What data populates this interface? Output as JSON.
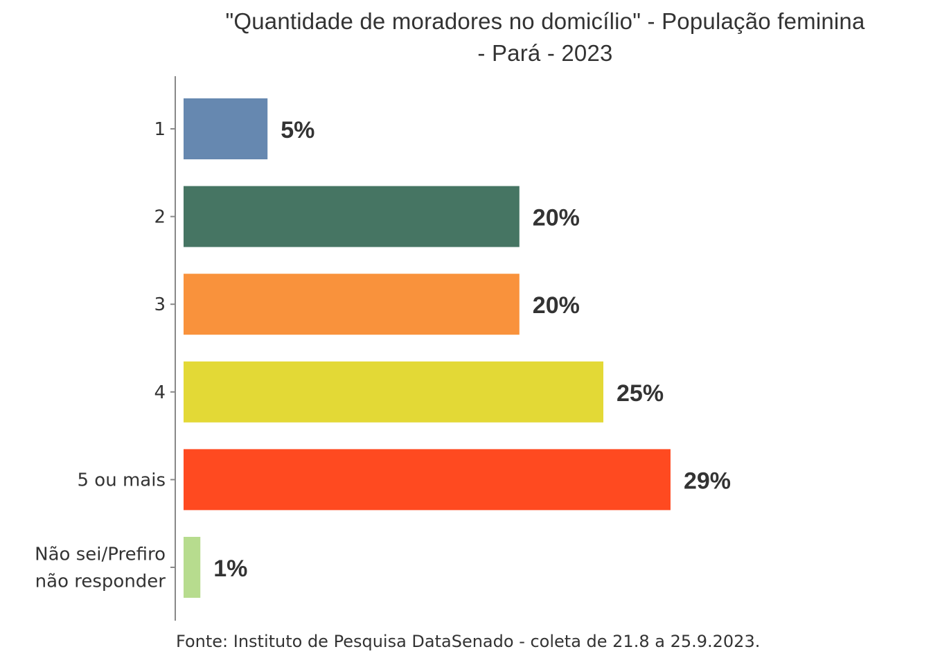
{
  "chart_data": {
    "type": "bar",
    "orientation": "horizontal",
    "title": "\"Quantidade de moradores no domicílio\" - População feminina - Pará - 2023",
    "title_lines": [
      "\"Quantidade de moradores no domicílio\" - População feminina",
      "- Pará - 2023"
    ],
    "categories": [
      "1",
      "2",
      "3",
      "4",
      "5 ou mais",
      "Não sei/Prefiro não responder"
    ],
    "category_lines": [
      [
        "1"
      ],
      [
        "2"
      ],
      [
        "3"
      ],
      [
        "4"
      ],
      [
        "5 ou mais"
      ],
      [
        "Não sei/Prefiro",
        "não responder"
      ]
    ],
    "values": [
      5,
      20,
      20,
      25,
      29,
      1
    ],
    "labels": [
      "5%",
      "20%",
      "20%",
      "25%",
      "29%",
      "1%"
    ],
    "colors": [
      "#6688b0",
      "#467563",
      "#f9923c",
      "#e3d936",
      "#ff4a20",
      "#b7dc8e"
    ],
    "xlabel": "",
    "ylabel": "",
    "xlim": [
      0,
      29
    ],
    "grid": false,
    "legend": "none",
    "source": "Fonte: Instituto de Pesquisa DataSenado - coleta de 21.8 a 25.9.2023."
  }
}
